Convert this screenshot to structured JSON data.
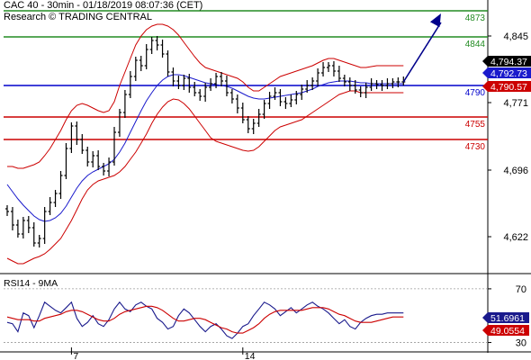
{
  "header": {
    "line1": "CAC 40 - 30min - 01/18/2019 08:07:36 (CET)",
    "line2": "Research © TRADING CENTRAL"
  },
  "colors": {
    "price": "#000000",
    "band": "#cc0000",
    "ma": "#1a1acc",
    "support": "#cc0000",
    "resistance_top": "#228b22",
    "pivot": "#0000cc",
    "rsi": "#1a1a8c",
    "rsi_ma": "#cc0000",
    "arrow": "#00008b",
    "separator": "#000000"
  },
  "chart_data": [
    {
      "type": "line",
      "title": "CAC 40 - 30min - 01/18/2019 08:07:36 (CET)",
      "subtitle": "Research © TRADING CENTRAL",
      "ylim": [
        4585,
        4885
      ],
      "y_ticks": [
        4622,
        4696,
        4771,
        4845
      ],
      "x_ticks": [
        {
          "label": "7",
          "index": 12
        },
        {
          "label": "14",
          "index": 44
        }
      ],
      "n_bars": 75,
      "series": [
        {
          "role": "price",
          "values": [
            4650,
            4635,
            4625,
            4640,
            4632,
            4615,
            4620,
            4650,
            4660,
            4670,
            4690,
            4720,
            4745,
            4730,
            4718,
            4705,
            4712,
            4700,
            4695,
            4705,
            4738,
            4760,
            4780,
            4800,
            4818,
            4812,
            4830,
            4840,
            4835,
            4825,
            4805,
            4795,
            4790,
            4798,
            4788,
            4782,
            4778,
            4788,
            4792,
            4800,
            4795,
            4782,
            4775,
            4765,
            4752,
            4742,
            4748,
            4758,
            4770,
            4778,
            4782,
            4772,
            4770,
            4774,
            4780,
            4786,
            4790,
            4795,
            4804,
            4810,
            4812,
            4806,
            4798,
            4794,
            4790,
            4785,
            4782,
            4788,
            4792,
            4791,
            4790,
            4792,
            4794,
            4794,
            4794
          ]
        },
        {
          "role": "bollinger-upper",
          "values": [
            4700,
            4700,
            4698,
            4698,
            4700,
            4702,
            4705,
            4712,
            4720,
            4730,
            4740,
            4752,
            4762,
            4768,
            4770,
            4768,
            4765,
            4762,
            4760,
            4762,
            4772,
            4790,
            4805,
            4820,
            4835,
            4845,
            4852,
            4856,
            4858,
            4858,
            4856,
            4852,
            4846,
            4838,
            4830,
            4822,
            4815,
            4810,
            4808,
            4806,
            4804,
            4802,
            4800,
            4798,
            4794,
            4788,
            4784,
            4784,
            4788,
            4792,
            4796,
            4800,
            4802,
            4804,
            4806,
            4808,
            4810,
            4812,
            4815,
            4818,
            4820,
            4820,
            4818,
            4816,
            4814,
            4812,
            4810,
            4810,
            4811,
            4812,
            4812,
            4812,
            4812,
            4812,
            4812
          ]
        },
        {
          "role": "bollinger-lower",
          "values": [
            4598,
            4595,
            4592,
            4592,
            4595,
            4598,
            4600,
            4603,
            4608,
            4614,
            4620,
            4630,
            4640,
            4652,
            4664,
            4674,
            4680,
            4684,
            4686,
            4688,
            4690,
            4694,
            4700,
            4708,
            4716,
            4726,
            4736,
            4748,
            4758,
            4766,
            4772,
            4775,
            4774,
            4770,
            4764,
            4756,
            4748,
            4740,
            4732,
            4728,
            4726,
            4724,
            4722,
            4720,
            4718,
            4717,
            4718,
            4722,
            4728,
            4734,
            4740,
            4744,
            4746,
            4748,
            4750,
            4752,
            4756,
            4760,
            4764,
            4768,
            4772,
            4776,
            4780,
            4782,
            4784,
            4784,
            4782,
            4782,
            4782,
            4782,
            4782,
            4782,
            4782,
            4782,
            4782
          ]
        },
        {
          "role": "moving-average",
          "values": [
            4680,
            4672,
            4664,
            4657,
            4651,
            4645,
            4641,
            4639,
            4640,
            4643,
            4648,
            4656,
            4666,
            4676,
            4684,
            4690,
            4694,
            4697,
            4700,
            4703,
            4708,
            4716,
            4726,
            4738,
            4750,
            4762,
            4773,
            4782,
            4790,
            4796,
            4800,
            4802,
            4802,
            4801,
            4799,
            4797,
            4795,
            4793,
            4792,
            4791,
            4790,
            4789,
            4787,
            4784,
            4781,
            4778,
            4776,
            4775,
            4775,
            4776,
            4777,
            4778,
            4779,
            4780,
            4781,
            4782,
            4784,
            4786,
            4789,
            4791,
            4793,
            4794,
            4795,
            4795,
            4795,
            4794,
            4793,
            4793,
            4792,
            4792,
            4792,
            4792,
            4792,
            4792,
            4792
          ]
        }
      ],
      "levels": [
        {
          "label": "4873",
          "value": 4873,
          "kind": "resistance"
        },
        {
          "label": "4844",
          "value": 4844,
          "kind": "resistance"
        },
        {
          "label": "4790",
          "value": 4790,
          "kind": "pivot"
        },
        {
          "label": "4755",
          "value": 4755,
          "kind": "support"
        },
        {
          "label": "4730",
          "value": 4730,
          "kind": "support"
        }
      ],
      "value_tags": [
        {
          "label": "4,794.37",
          "value": 4794.37,
          "color": "#000000"
        },
        {
          "label": "4,792.73",
          "value": 4792.73,
          "color": "#1a1acc"
        },
        {
          "label": "4,790.57",
          "value": 4790.57,
          "color": "#cc0000"
        }
      ],
      "arrow": {
        "from": {
          "index": 74,
          "value": 4794
        },
        "to": {
          "index": 81,
          "value": 4870
        }
      }
    },
    {
      "type": "line",
      "title": "RSI14 - 9MA",
      "ylim": [
        25,
        80
      ],
      "y_ticks": [
        30,
        70
      ],
      "series": [
        {
          "role": "rsi",
          "values": [
            45,
            44,
            38,
            52,
            50,
            41,
            50,
            60,
            57,
            54,
            52,
            56,
            60,
            48,
            42,
            45,
            50,
            44,
            42,
            47,
            55,
            60,
            55,
            53,
            58,
            60,
            57,
            55,
            48,
            45,
            40,
            42,
            50,
            55,
            52,
            47,
            42,
            38,
            42,
            44,
            40,
            35,
            33,
            37,
            42,
            44,
            50,
            55,
            60,
            58,
            55,
            50,
            53,
            56,
            52,
            55,
            58,
            60,
            57,
            55,
            52,
            48,
            44,
            47,
            42,
            40,
            45,
            48,
            50,
            51,
            51,
            52,
            52,
            52,
            52
          ]
        },
        {
          "role": "rsi-ma",
          "values": [
            49,
            48,
            47,
            47,
            47,
            46,
            46,
            48,
            49,
            50,
            51,
            53,
            54,
            54,
            53,
            51,
            49,
            47,
            46,
            46,
            48,
            51,
            53,
            54,
            55,
            56,
            57,
            57,
            56,
            54,
            51,
            48,
            46,
            46,
            47,
            48,
            48,
            47,
            45,
            43,
            41,
            40,
            38,
            37,
            37,
            39,
            41,
            44,
            48,
            51,
            53,
            54,
            54,
            54,
            54,
            54,
            55,
            56,
            56,
            56,
            55,
            53,
            51,
            50,
            48,
            46,
            45,
            45,
            45,
            46,
            47,
            48,
            49,
            49,
            49
          ]
        }
      ],
      "value_tags": [
        {
          "label": "51.6961",
          "value": 51.6961,
          "color": "#1a1a8c"
        },
        {
          "label": "49.0554",
          "value": 49.0554,
          "color": "#cc0000"
        }
      ]
    }
  ]
}
